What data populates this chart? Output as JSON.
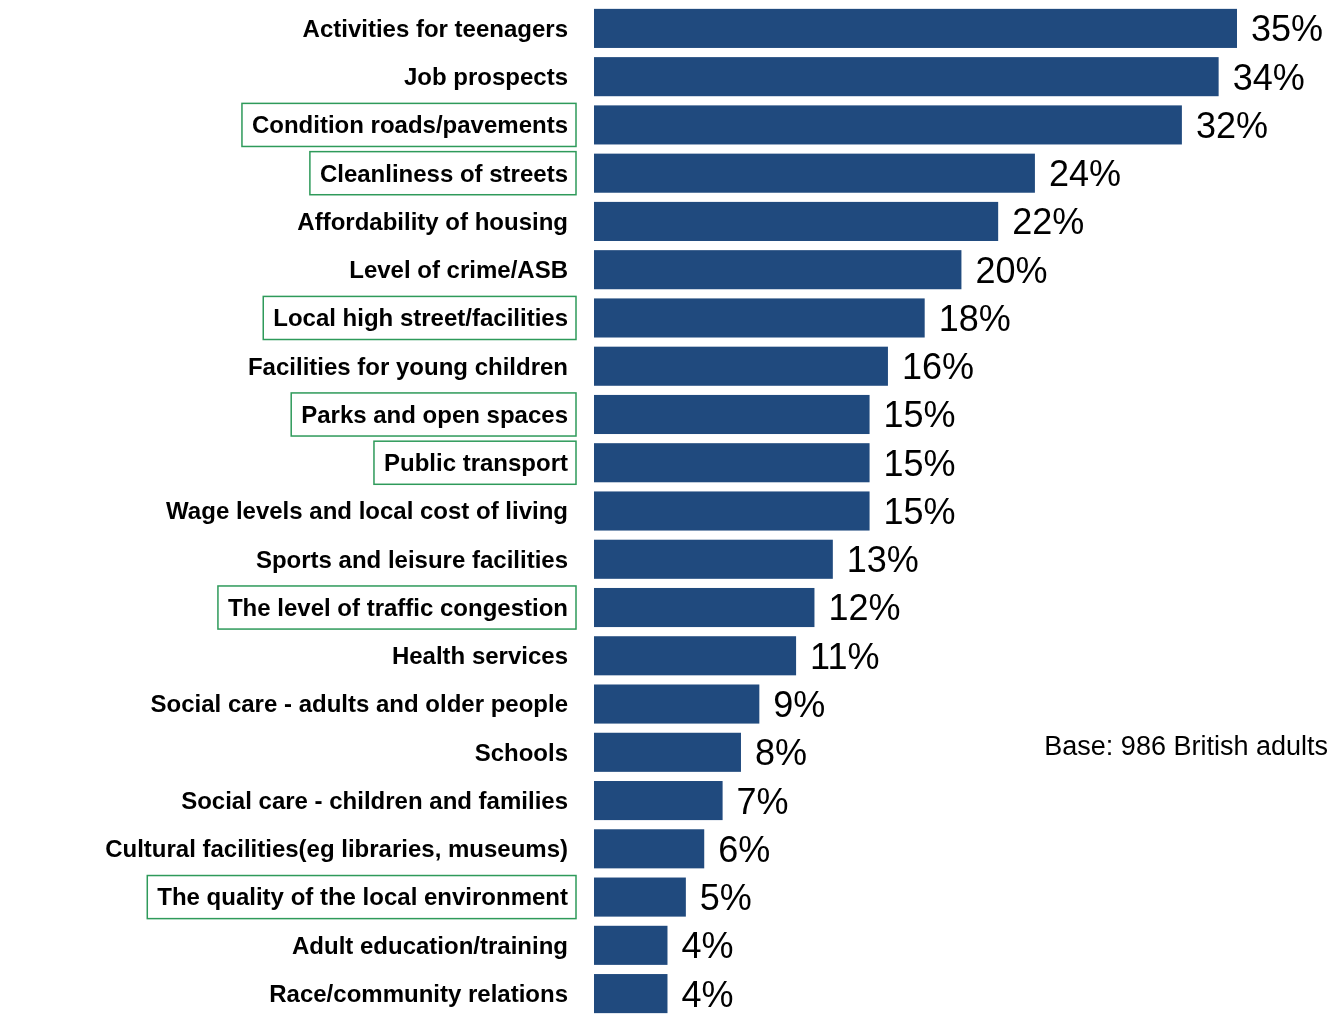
{
  "chart_data": {
    "type": "bar",
    "orientation": "horizontal",
    "categories": [
      "Activities for teenagers",
      "Job prospects",
      "Condition roads/pavements",
      "Cleanliness of streets",
      "Affordability of housing",
      "Level of crime/ASB",
      "Local high street/facilities",
      "Facilities for young children",
      "Parks and open spaces",
      "Public transport",
      "Wage levels and local cost of living",
      "Sports and leisure facilities",
      "The level of traffic congestion",
      "Health services",
      "Social care - adults and older people",
      "Schools",
      "Social care - children and families",
      "Cultural facilities(eg libraries, museums)",
      "The quality of the local environment",
      "Adult education/training",
      "Race/community relations"
    ],
    "values": [
      35,
      34,
      32,
      24,
      22,
      20,
      18,
      16,
      15,
      15,
      15,
      13,
      12,
      11,
      9,
      8,
      7,
      6,
      5,
      4,
      4
    ],
    "value_labels": [
      "35%",
      "34%",
      "32%",
      "24%",
      "22%",
      "20%",
      "18%",
      "16%",
      "15%",
      "15%",
      "15%",
      "13%",
      "12%",
      "11%",
      "9%",
      "8%",
      "7%",
      "6%",
      "5%",
      "4%",
      "4%"
    ],
    "color": "#204a7e",
    "annotations": [
      "Base: 986 British adults"
    ]
  }
}
